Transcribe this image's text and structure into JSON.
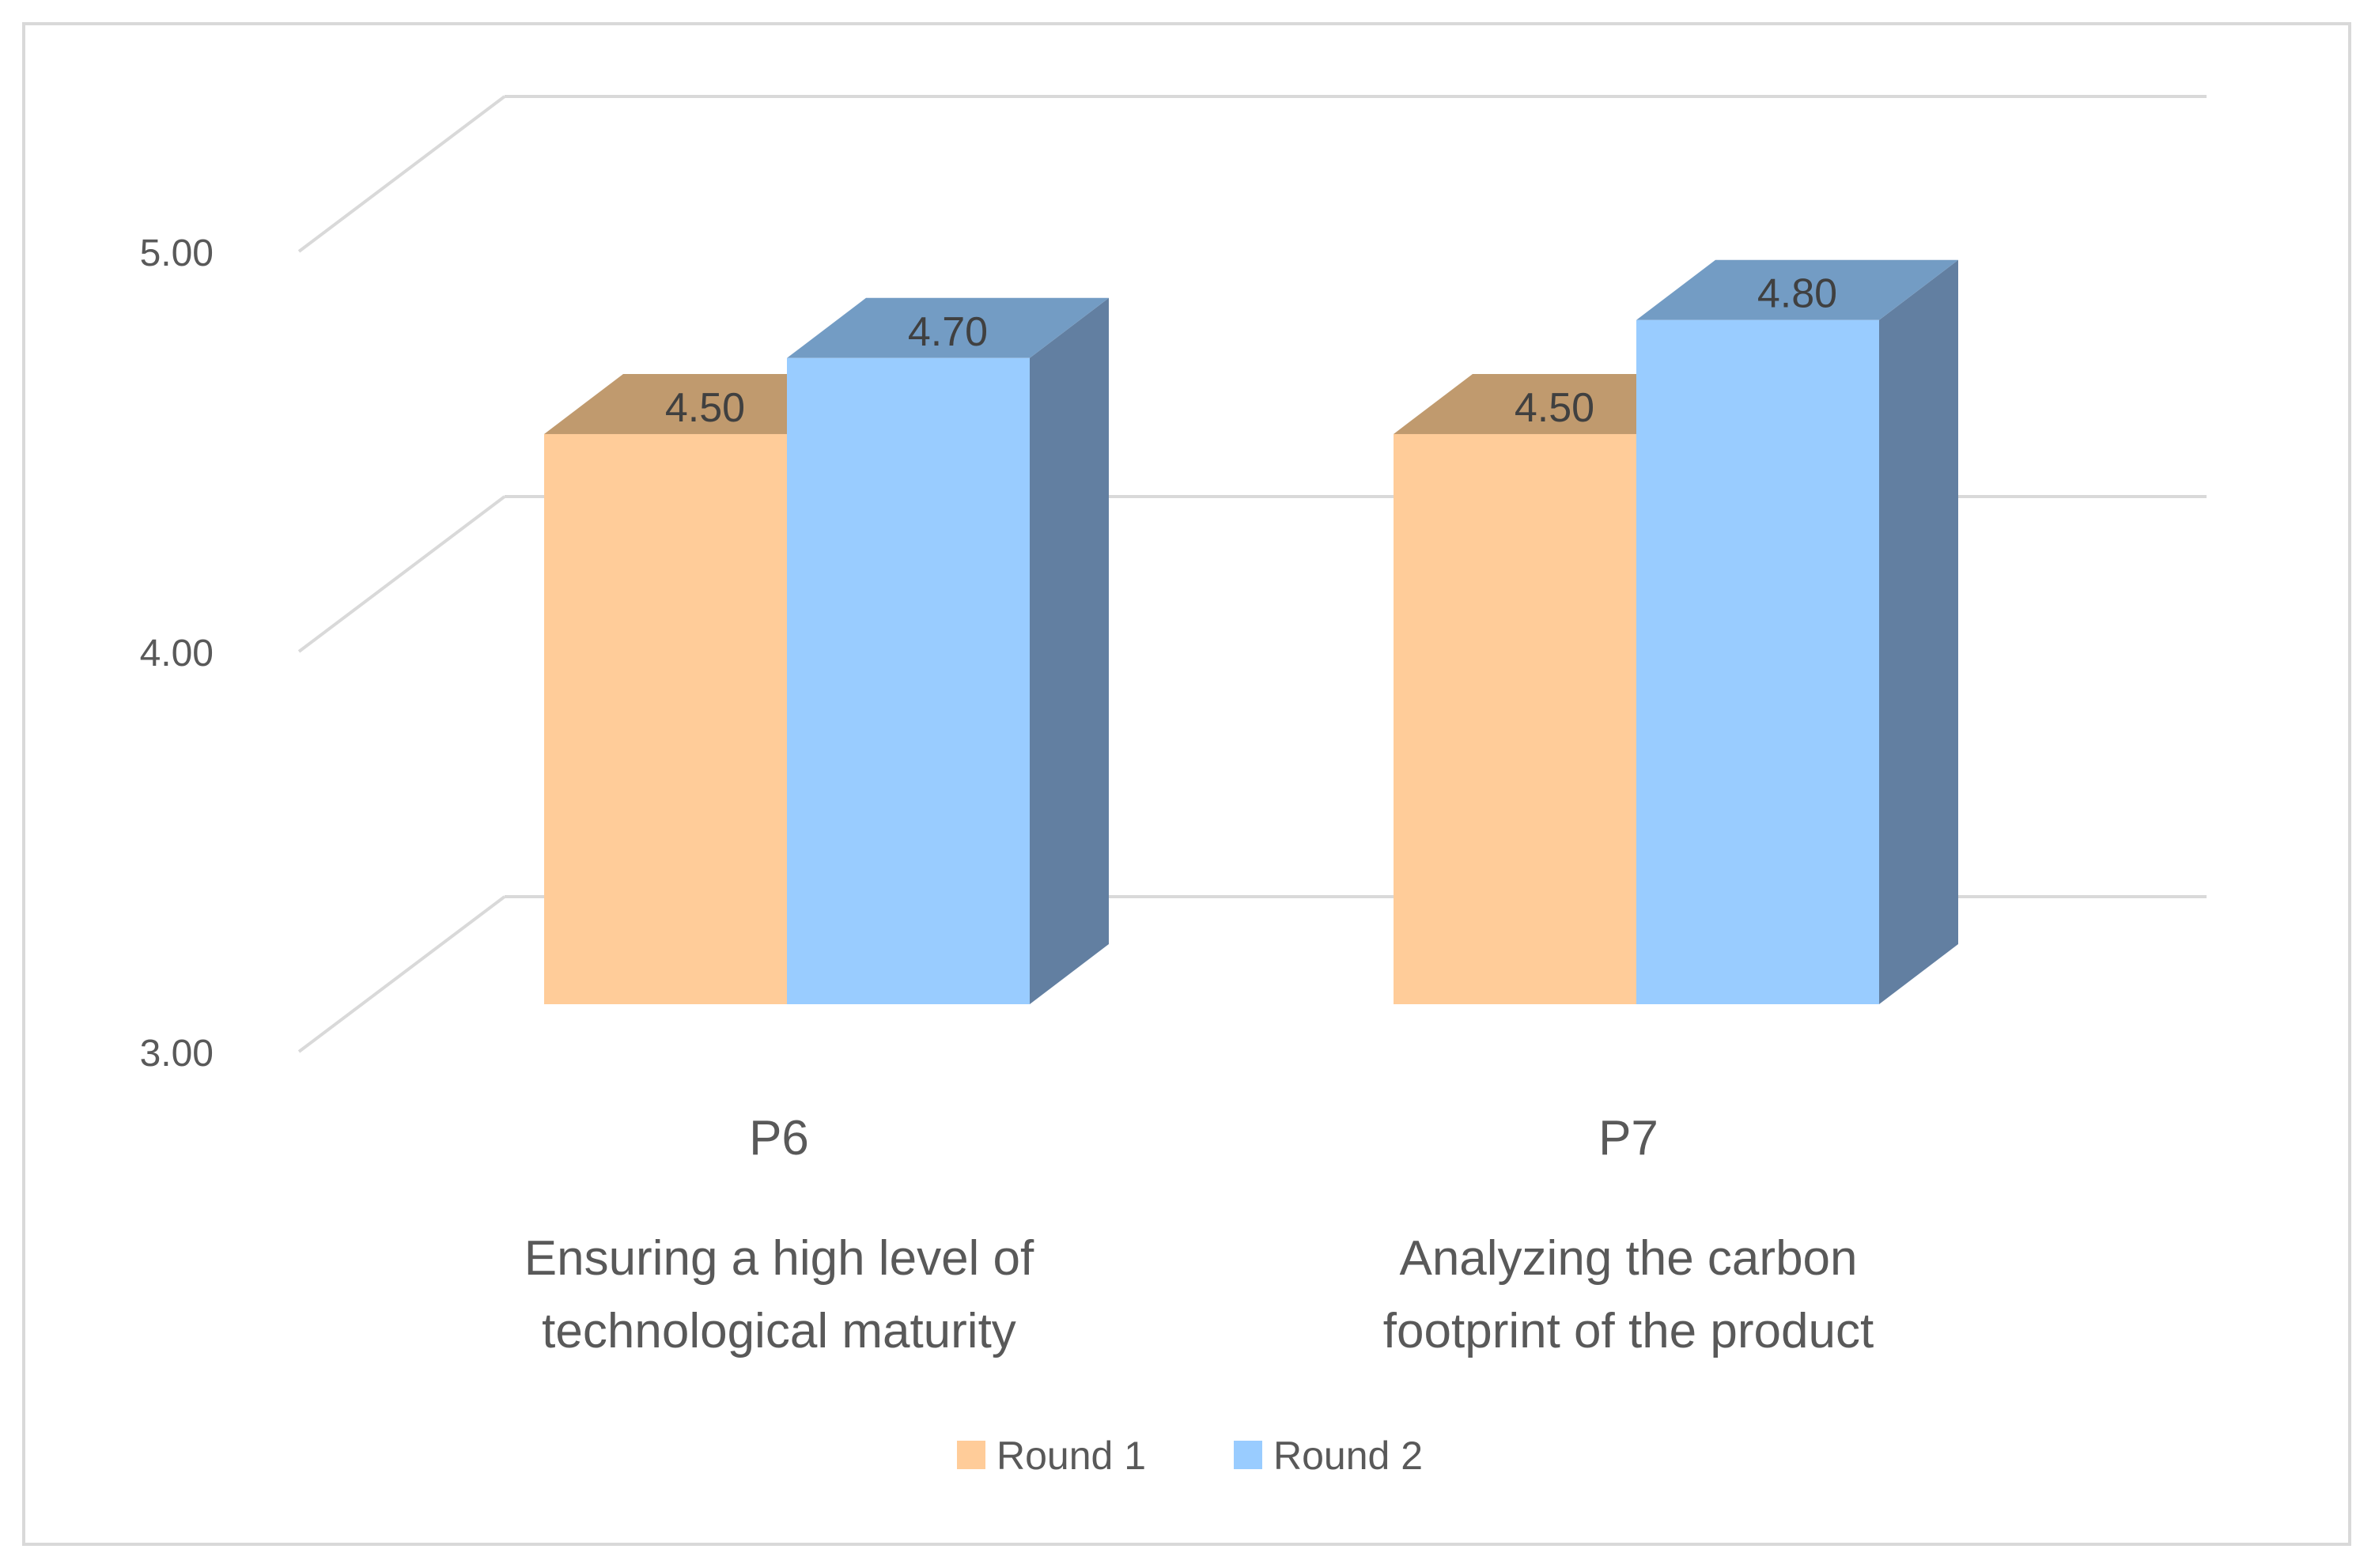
{
  "chart_data": {
    "type": "bar",
    "title": "",
    "xlabel": "",
    "ylabel": "",
    "ylim": [
      3.0,
      5.0
    ],
    "yticks": [
      {
        "value": 3.0,
        "label": "3.00"
      },
      {
        "value": 4.0,
        "label": "4.00"
      },
      {
        "value": 5.0,
        "label": "5.00"
      }
    ],
    "categories": [
      {
        "code": "P6",
        "description": [
          "Ensuring a high level of",
          "technological maturity"
        ]
      },
      {
        "code": "P7",
        "description": [
          "Analyzing the carbon",
          "footprint of the product"
        ]
      }
    ],
    "series": [
      {
        "name": "Round 1",
        "values": [
          4.5,
          4.5
        ],
        "labels": [
          "4.50",
          "4.50"
        ],
        "color": "#FFCC99",
        "top_color": "#C09A6E",
        "side_color": "#B89264"
      },
      {
        "name": "Round 2",
        "values": [
          4.7,
          4.8
        ],
        "labels": [
          "4.70",
          "4.80"
        ],
        "color": "#99CCFF",
        "top_color": "#739CC4",
        "side_color": "#627FA1"
      }
    ],
    "legend_position": "bottom",
    "grid": true,
    "style": "3d-clustered-column"
  }
}
